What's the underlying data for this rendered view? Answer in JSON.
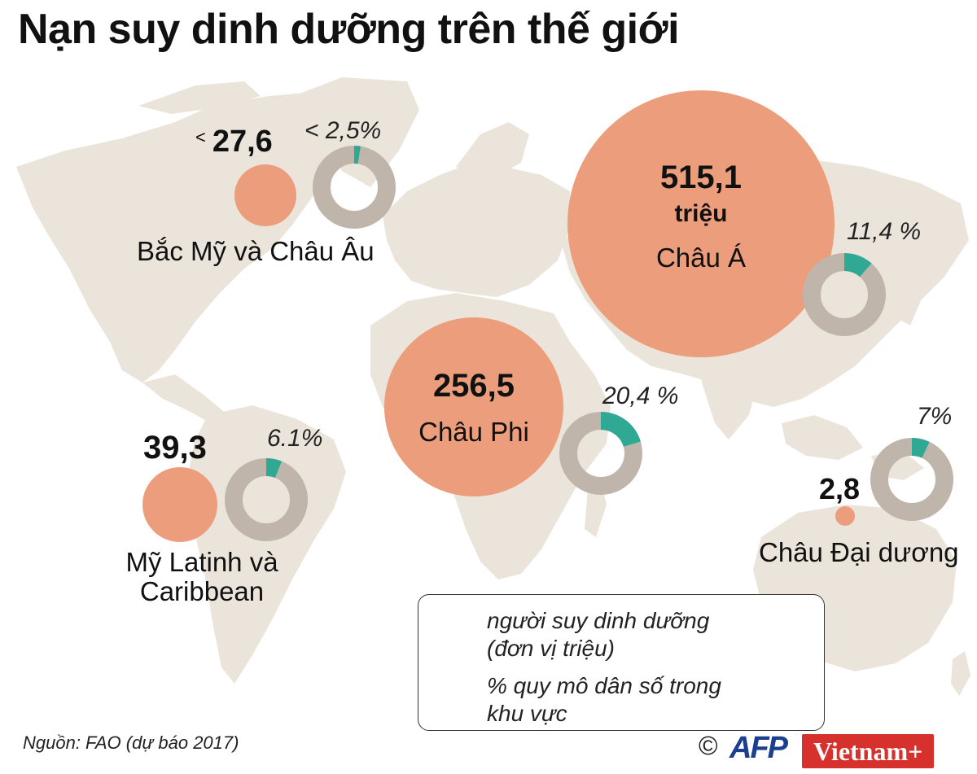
{
  "title": "Nạn suy dinh dưỡng trên thế giới",
  "colors": {
    "bubble": "#ec9e7c",
    "ring": "#bfb5ab",
    "share": "#2fa894",
    "land": "#ebe4db"
  },
  "regions": [
    {
      "id": "north-america-europe",
      "name": "Bắc Mỹ và Châu Âu",
      "value_label": "27,6",
      "value_prefix": "<",
      "value": 27.6,
      "pct_label": "< 2,5%",
      "pct": 2.5
    },
    {
      "id": "asia",
      "name": "Châu Á",
      "value_label": "515,1",
      "unit_label": "triệu",
      "value": 515.1,
      "pct_label": "11,4 %",
      "pct": 11.4
    },
    {
      "id": "africa",
      "name": "Châu Phi",
      "value_label": "256,5",
      "value": 256.5,
      "pct_label": "20,4 %",
      "pct": 20.4
    },
    {
      "id": "latin-america",
      "name_line1": "Mỹ Latinh và",
      "name_line2": "Caribbean",
      "value_label": "39,3",
      "value": 39.3,
      "pct_label": "6.1%",
      "pct": 6.1
    },
    {
      "id": "oceania",
      "name": "Châu Đại dương",
      "value_label": "2,8",
      "value": 2.8,
      "pct_label": "7%",
      "pct": 7
    }
  ],
  "legend": {
    "bubble_text_line1": "người suy dinh dưỡng",
    "bubble_text_line2": "(đơn vị triệu)",
    "ring_text_line1": "% quy mô dân số trong",
    "ring_text_line2": "khu vực"
  },
  "source": "Nguồn: FAO (dự báo 2017)",
  "credits": {
    "copyright": "©",
    "afp": "AFP",
    "vietnam": "Vietnam+"
  }
}
